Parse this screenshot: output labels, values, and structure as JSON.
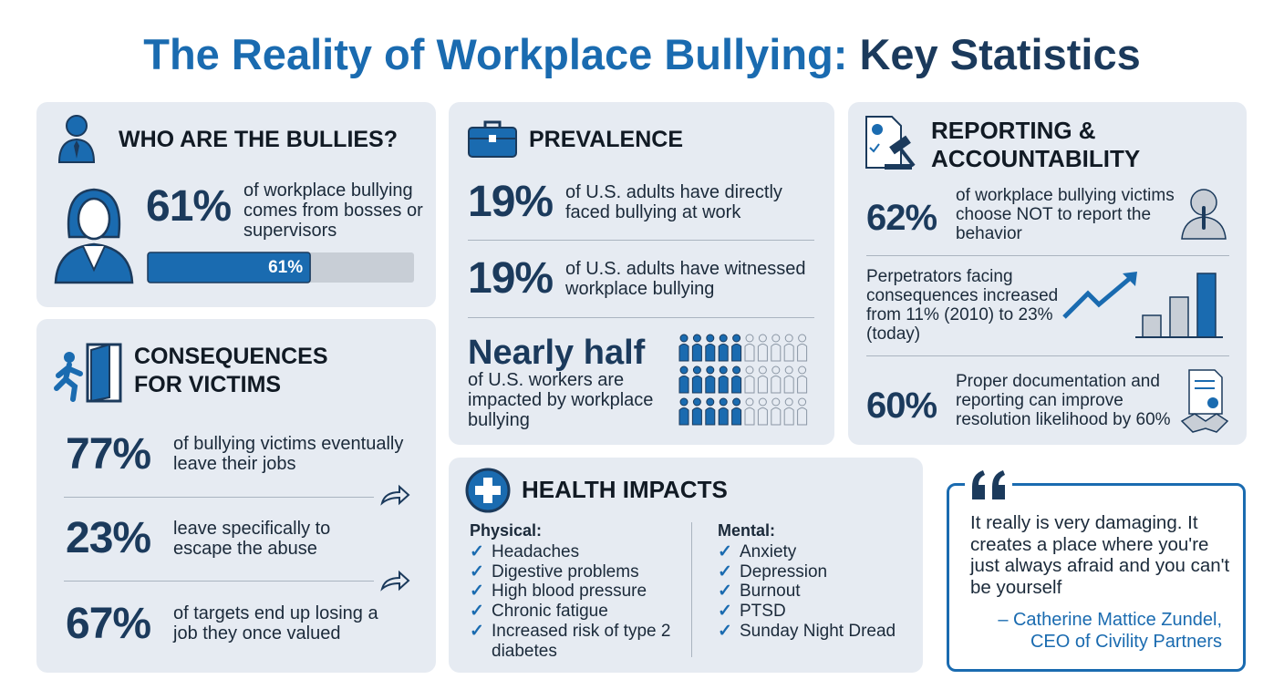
{
  "title": {
    "part1": "The Reality of Workplace Bullying:",
    "part2": "Key Statistics"
  },
  "bullies": {
    "heading": "WHO ARE THE BULLIES?",
    "stat": "61%",
    "text": "of workplace bullying comes from bosses or supervisors",
    "bar": {
      "value": 61,
      "label": "61%",
      "xlim": [
        0,
        100
      ]
    }
  },
  "consequences": {
    "heading": "CONSEQUENCES FOR VICTIMS",
    "items": [
      {
        "stat": "77%",
        "text": "of bullying victims eventually leave their jobs"
      },
      {
        "stat": "23%",
        "text": "leave specifically to escape the abuse"
      },
      {
        "stat": "67%",
        "text": "of targets end up losing a job they once valued"
      }
    ]
  },
  "prevalence": {
    "heading": "PREVALENCE",
    "items": [
      {
        "stat": "19%",
        "text": "of U.S. adults have directly faced bullying at work"
      },
      {
        "stat": "19%",
        "text": "of U.S. adults have witnessed workplace bullying"
      }
    ],
    "highlight": {
      "stat": "Nearly half",
      "text": "of U.S. workers are impacted by workplace bullying"
    }
  },
  "reporting": {
    "heading": "REPORTING & ACCOUNTABILITY",
    "items": [
      {
        "stat": "62%",
        "text": "of workplace bullying victims choose NOT to report the behavior"
      },
      {
        "text": "Perpetrators facing consequences increased from 11% (2010) to 23% (today)"
      },
      {
        "stat": "60%",
        "text": "Proper documentation and reporting can improve resolution likelihood by 60%"
      }
    ]
  },
  "health": {
    "heading": "HEALTH IMPACTS",
    "physical": {
      "label": "Physical:",
      "items": [
        "Headaches",
        "Digestive problems",
        "High blood pressure",
        "Chronic fatigue",
        "Increased risk of type 2 diabetes"
      ]
    },
    "mental": {
      "label": "Mental:",
      "items": [
        "Anxiety",
        "Depression",
        "Burnout",
        "PTSD",
        "Sunday Night Dread"
      ]
    }
  },
  "quote": {
    "text": "It really is very damaging. It creates a place where you're just always afraid and you can't be yourself",
    "author": "– Catherine Mattice Zundel,",
    "role": "CEO of Civility Partners"
  }
}
